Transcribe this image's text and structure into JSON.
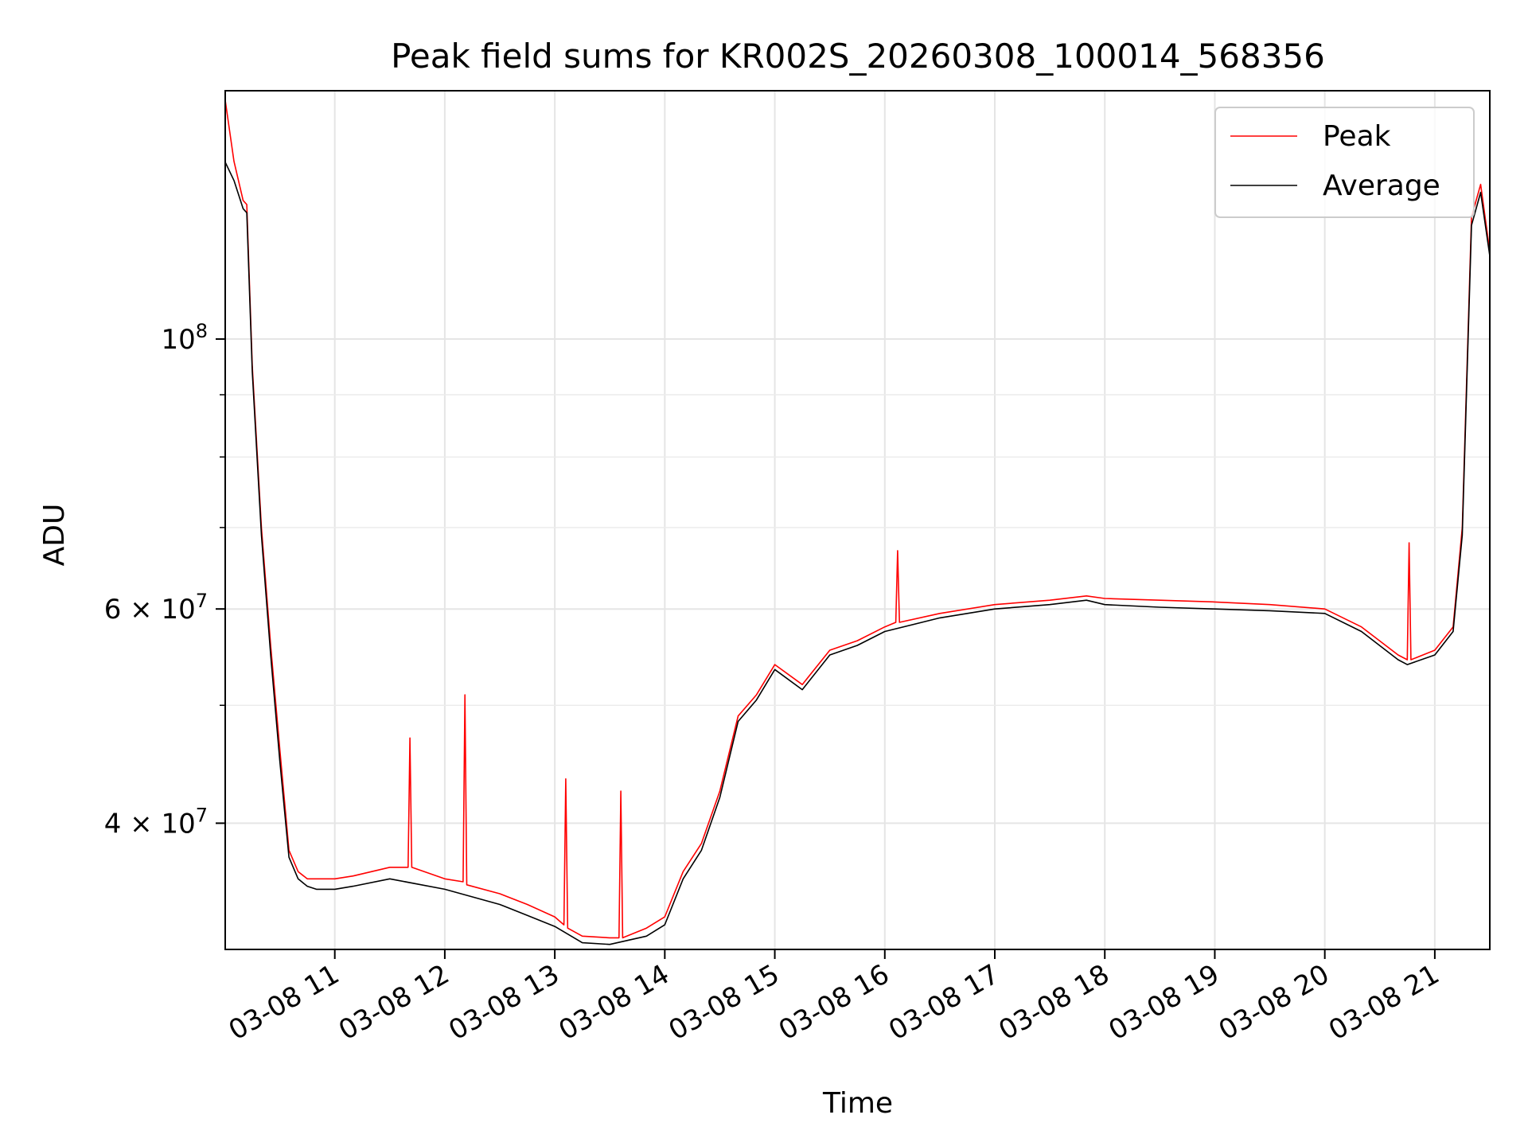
{
  "chart_data": {
    "type": "line",
    "title": "Peak field sums for KR002S_20260308_100014_568356",
    "xlabel": "Time",
    "ylabel": "ADU",
    "y_scale": "log",
    "ylim": [
      31500000,
      160000000
    ],
    "xlim": [
      "03-08 10:00:14",
      "03-08 21:30:00"
    ],
    "grid": true,
    "legend_position": "top-right",
    "x_ticks": [
      "03-08 11",
      "03-08 12",
      "03-08 13",
      "03-08 14",
      "03-08 15",
      "03-08 16",
      "03-08 17",
      "03-08 18",
      "03-08 19",
      "03-08 20",
      "03-08 21"
    ],
    "x_tick_times": [
      "03-08 11:00",
      "03-08 12:00",
      "03-08 13:00",
      "03-08 14:00",
      "03-08 15:00",
      "03-08 16:00",
      "03-08 17:00",
      "03-08 18:00",
      "03-08 19:00",
      "03-08 20:00",
      "03-08 21:00"
    ],
    "y_major_ticks": [
      {
        "value": 100000000,
        "mantissa": "",
        "exponent": "8"
      },
      {
        "value": 60000000,
        "mantissa": "6",
        "exponent": "7"
      },
      {
        "value": 40000000,
        "mantissa": "4",
        "exponent": "7"
      }
    ],
    "y_minor_ticks": [
      50000000,
      70000000,
      80000000,
      90000000
    ],
    "series": [
      {
        "name": "Peak",
        "color": "#ff0000",
        "x": [
          "03-08 10:00",
          "03-08 10:05",
          "03-08 10:10",
          "03-08 10:12",
          "03-08 10:15",
          "03-08 10:20",
          "03-08 10:25",
          "03-08 10:30",
          "03-08 10:35",
          "03-08 10:40",
          "03-08 10:45",
          "03-08 10:50",
          "03-08 11:00",
          "03-08 11:10",
          "03-08 11:30",
          "03-08 11:40",
          "03-08 11:41",
          "03-08 11:42",
          "03-08 12:00",
          "03-08 12:10",
          "03-08 12:11",
          "03-08 12:12",
          "03-08 12:30",
          "03-08 12:45",
          "03-08 13:00",
          "03-08 13:05",
          "03-08 13:06",
          "03-08 13:07",
          "03-08 13:15",
          "03-08 13:30",
          "03-08 13:35",
          "03-08 13:36",
          "03-08 13:37",
          "03-08 13:50",
          "03-08 14:00",
          "03-08 14:10",
          "03-08 14:20",
          "03-08 14:30",
          "03-08 14:40",
          "03-08 14:50",
          "03-08 15:00",
          "03-08 15:15",
          "03-08 15:30",
          "03-08 15:45",
          "03-08 16:00",
          "03-08 16:06",
          "03-08 16:07",
          "03-08 16:08",
          "03-08 16:30",
          "03-08 17:00",
          "03-08 17:30",
          "03-08 17:50",
          "03-08 18:00",
          "03-08 18:30",
          "03-08 19:00",
          "03-08 19:30",
          "03-08 20:00",
          "03-08 20:20",
          "03-08 20:40",
          "03-08 20:45",
          "03-08 20:46",
          "03-08 20:47",
          "03-08 21:00",
          "03-08 21:10",
          "03-08 21:15",
          "03-08 21:20",
          "03-08 21:25",
          "03-08 21:30"
        ],
        "values": [
          158000000,
          140000000,
          130000000,
          129000000,
          95000000,
          70000000,
          56000000,
          46000000,
          38000000,
          36500000,
          36000000,
          36000000,
          36000000,
          36200000,
          36800000,
          36800000,
          47000000,
          36800000,
          36000000,
          35800000,
          51000000,
          35600000,
          35000000,
          34300000,
          33500000,
          33000000,
          43500000,
          32800000,
          32300000,
          32200000,
          32200000,
          42500000,
          32200000,
          32800000,
          33500000,
          36500000,
          38500000,
          42500000,
          49000000,
          51000000,
          54000000,
          52000000,
          55500000,
          56500000,
          58000000,
          58500000,
          67000000,
          58500000,
          59500000,
          60500000,
          61000000,
          61500000,
          61200000,
          61000000,
          60800000,
          60500000,
          60000000,
          58000000,
          55000000,
          54500000,
          68000000,
          54500000,
          55500000,
          58000000,
          70000000,
          126000000,
          134000000,
          118000000
        ]
      },
      {
        "name": "Average",
        "color": "#000000",
        "x": [
          "03-08 10:00",
          "03-08 10:05",
          "03-08 10:10",
          "03-08 10:12",
          "03-08 10:15",
          "03-08 10:20",
          "03-08 10:25",
          "03-08 10:30",
          "03-08 10:35",
          "03-08 10:40",
          "03-08 10:45",
          "03-08 10:50",
          "03-08 11:00",
          "03-08 11:10",
          "03-08 11:30",
          "03-08 12:00",
          "03-08 12:30",
          "03-08 12:45",
          "03-08 13:00",
          "03-08 13:15",
          "03-08 13:30",
          "03-08 13:50",
          "03-08 14:00",
          "03-08 14:10",
          "03-08 14:20",
          "03-08 14:30",
          "03-08 14:40",
          "03-08 14:50",
          "03-08 15:00",
          "03-08 15:15",
          "03-08 15:30",
          "03-08 15:45",
          "03-08 16:00",
          "03-08 16:30",
          "03-08 17:00",
          "03-08 17:30",
          "03-08 17:50",
          "03-08 18:00",
          "03-08 18:30",
          "03-08 19:00",
          "03-08 19:30",
          "03-08 20:00",
          "03-08 20:20",
          "03-08 20:40",
          "03-08 20:45",
          "03-08 21:00",
          "03-08 21:10",
          "03-08 21:15",
          "03-08 21:20",
          "03-08 21:25",
          "03-08 21:30"
        ],
        "values": [
          140000000,
          135000000,
          128000000,
          127000000,
          94000000,
          69000000,
          55000000,
          45000000,
          37500000,
          36000000,
          35500000,
          35300000,
          35300000,
          35500000,
          36000000,
          35300000,
          34300000,
          33600000,
          32900000,
          31900000,
          31800000,
          32300000,
          33000000,
          36000000,
          38000000,
          42000000,
          48500000,
          50500000,
          53500000,
          51500000,
          55000000,
          56000000,
          57500000,
          59000000,
          60000000,
          60500000,
          61000000,
          60500000,
          60200000,
          60000000,
          59800000,
          59500000,
          57500000,
          54500000,
          54000000,
          55000000,
          57500000,
          69000000,
          124000000,
          132000000,
          117000000
        ]
      }
    ]
  }
}
